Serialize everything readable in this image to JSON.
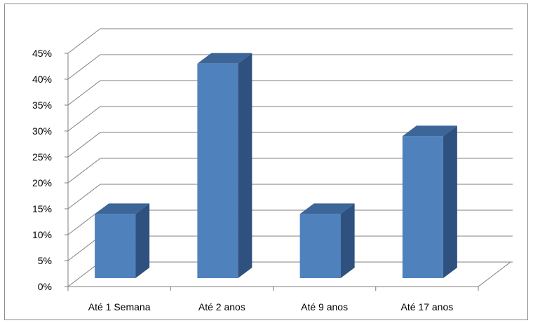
{
  "chart_data": {
    "type": "bar",
    "categories": [
      "Até 1 Semana",
      "Até 2 anos",
      "Até 9 anos",
      "Até 17 anos"
    ],
    "values": [
      14,
      43,
      14,
      29
    ],
    "ylim": [
      0,
      45
    ],
    "yticks": [
      "0%",
      "5%",
      "10%",
      "15%",
      "20%",
      "25%",
      "30%",
      "35%",
      "40%",
      "45%"
    ],
    "ytick_values": [
      0,
      5,
      10,
      15,
      20,
      25,
      30,
      35,
      40,
      45
    ],
    "grid": true,
    "legend": "none",
    "colors": {
      "bar_front": "#4f81bd",
      "bar_side": "#2f5180",
      "bar_top": "#3c6598",
      "grid": "#7f7f7f",
      "axis": "#7f7f7f"
    }
  }
}
